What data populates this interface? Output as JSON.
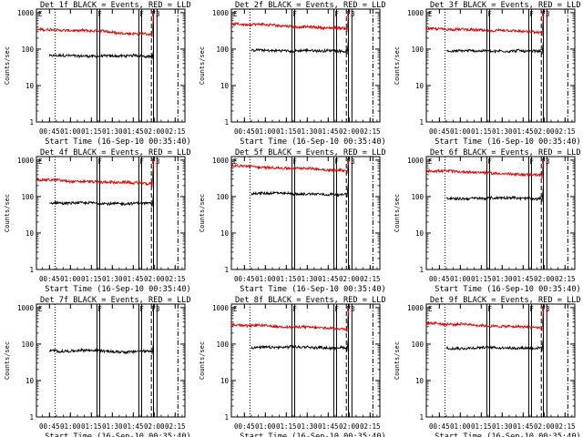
{
  "colors": {
    "events": "#000000",
    "lld": "#e00000",
    "axis": "#000000"
  },
  "common": {
    "xlabel": "Start Time (16-Sep-10 00:35:40)",
    "ylabel": "Counts/sec",
    "x_ticks": [
      "00:45",
      "01:00",
      "01:15",
      "01:30",
      "01:45",
      "02:00",
      "02:15"
    ],
    "y_ticks": [
      "1",
      "10",
      "100",
      "1000"
    ],
    "marker_labels": {
      "E": "E",
      "F": "F",
      "F3": "F3"
    }
  },
  "chart_data": [
    {
      "type": "line",
      "title": "Det 1f BLACK = Events, RED = LLD",
      "ylim": [
        1,
        1000
      ],
      "ylog": true,
      "series": [
        {
          "name": "Events",
          "level": 65,
          "start": "00:45",
          "jump": 95
        },
        {
          "name": "LLD",
          "level": 300,
          "start": "00:35:40",
          "jump": 1000
        }
      ]
    },
    {
      "type": "line",
      "title": "Det 2f BLACK = Events, RED = LLD",
      "ylim": [
        1,
        1000
      ],
      "ylog": true,
      "series": [
        {
          "name": "Events",
          "level": 90,
          "start": "00:50",
          "jump": 180
        },
        {
          "name": "LLD",
          "level": 420,
          "start": "00:35:40",
          "jump": 1000
        }
      ]
    },
    {
      "type": "line",
      "title": "Det 3f BLACK = Events, RED = LLD",
      "ylim": [
        1,
        1000
      ],
      "ylog": true,
      "series": [
        {
          "name": "Events",
          "level": 90,
          "start": "00:50",
          "jump": 170
        },
        {
          "name": "LLD",
          "level": 320,
          "start": "00:35:40",
          "jump": 1000
        }
      ]
    },
    {
      "type": "line",
      "title": "Det 4f BLACK = Events, RED = LLD",
      "ylim": [
        1,
        1000
      ],
      "ylog": true,
      "series": [
        {
          "name": "Events",
          "level": 65,
          "start": "00:45",
          "jump": 120
        },
        {
          "name": "LLD",
          "level": 260,
          "start": "00:35:40",
          "jump": 1000
        }
      ]
    },
    {
      "type": "line",
      "title": "Det 5f BLACK = Events, RED = LLD",
      "ylim": [
        1,
        1000
      ],
      "ylog": true,
      "series": [
        {
          "name": "Events",
          "level": 120,
          "start": "00:50",
          "jump": 280
        },
        {
          "name": "LLD",
          "level": 600,
          "start": "00:35:40",
          "jump": 1000
        }
      ]
    },
    {
      "type": "line",
      "title": "Det 6f BLACK = Events, RED = LLD",
      "ylim": [
        1,
        1000
      ],
      "ylog": true,
      "series": [
        {
          "name": "Events",
          "level": 90,
          "start": "00:50",
          "jump": 200
        },
        {
          "name": "LLD",
          "level": 450,
          "start": "00:35:40",
          "jump": 1000
        }
      ]
    },
    {
      "type": "line",
      "title": "Det 7f BLACK = Events, RED = LLD",
      "ylim": [
        1,
        1000
      ],
      "ylog": true,
      "series": [
        {
          "name": "Events",
          "level": 65,
          "start": "00:45",
          "jump": 110
        }
      ]
    },
    {
      "type": "line",
      "title": "Det 8f BLACK = Events, RED = LLD",
      "ylim": [
        1,
        1000
      ],
      "ylog": true,
      "series": [
        {
          "name": "Events",
          "level": 80,
          "start": "00:50",
          "jump": 160
        },
        {
          "name": "LLD",
          "level": 300,
          "start": "00:35:40",
          "jump": 1000
        }
      ]
    },
    {
      "type": "line",
      "title": "Det 9f BLACK = Events, RED = LLD",
      "ylim": [
        1,
        1000
      ],
      "ylog": true,
      "series": [
        {
          "name": "Events",
          "level": 80,
          "start": "00:50",
          "jump": 160
        },
        {
          "name": "LLD",
          "level": 320,
          "start": "00:35:40",
          "jump": 1000
        }
      ]
    }
  ]
}
